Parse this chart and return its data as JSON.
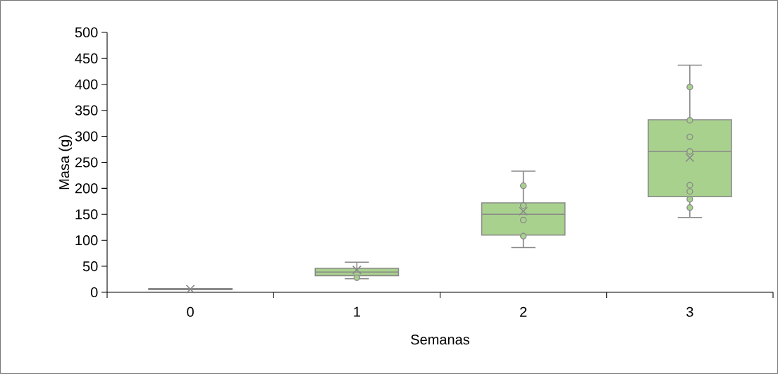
{
  "chart_data": {
    "type": "box",
    "xlabel": "Semanas",
    "ylabel": "Masa (g)",
    "categories": [
      "0",
      "1",
      "2",
      "3"
    ],
    "ylim": [
      0,
      500
    ],
    "yticks": [
      0,
      50,
      100,
      150,
      200,
      250,
      300,
      350,
      400,
      450,
      500
    ],
    "marker": "circle",
    "series": [
      {
        "type": "box",
        "color": "#a9d18e",
        "boxes": [
          {
            "low": 5,
            "q1": 5,
            "median": 6,
            "q3": 7,
            "high": 7,
            "mean": 6
          },
          {
            "low": 26,
            "q1": 32,
            "median": 39,
            "q3": 46,
            "high": 58,
            "mean": 43
          },
          {
            "low": 86,
            "q1": 110,
            "median": 150,
            "q3": 172,
            "high": 233,
            "mean": 156
          },
          {
            "low": 144,
            "q1": 184,
            "median": 271,
            "q3": 332,
            "high": 437,
            "mean": 259
          }
        ]
      },
      {
        "type": "scatter",
        "color": "#a9d18e",
        "x": [
          "1",
          "2",
          "2",
          "2",
          "2",
          "3",
          "3",
          "3",
          "3",
          "3",
          "3",
          "3",
          "3"
        ],
        "values": [
          28,
          205,
          167,
          139,
          108,
          395,
          331,
          299,
          271,
          206,
          194,
          179,
          163
        ]
      }
    ]
  }
}
